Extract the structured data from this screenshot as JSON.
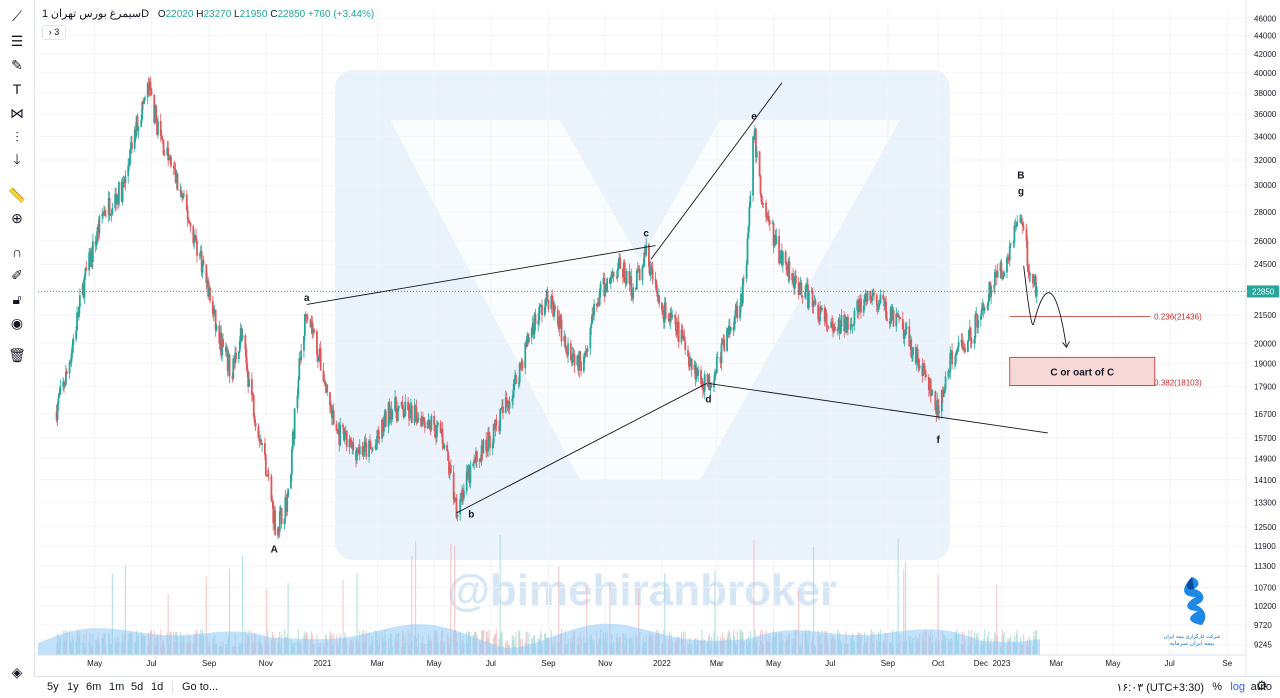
{
  "legend": {
    "symbol": "سیمرغ",
    "interval": "1D",
    "exchange": "بورس تهران",
    "open_label": "O",
    "open": "22020",
    "high_label": "H",
    "high": "23270",
    "low_label": "L",
    "low": "21950",
    "close_label": "C",
    "close": "22850",
    "change": "+760 (+3.44%)",
    "indicators_collapsed": "3"
  },
  "watermark": "@bimehiranbroker",
  "bottom_bar": {
    "ranges": [
      "5y",
      "1y",
      "6m",
      "1m",
      "5d",
      "1d"
    ],
    "goto": "Go to...",
    "clock": "۱۶:۰۳ (UTC+3:30)",
    "percent": "%",
    "log": "log",
    "auto": "auto"
  },
  "logo": {
    "line1": "شرکت کارگزاری بیمه ایران",
    "line2": "بیمه ایران سرمایه"
  },
  "icons": {
    "toolbar": [
      "trend-line-icon",
      "fib-icon",
      "brush-icon",
      "text-icon",
      "pattern-icon",
      "prediction-icon",
      "arrow-down-icon",
      "ruler-icon",
      "zoom-icon",
      "magnet-icon",
      "lock-pencil-icon",
      "lock-icon",
      "eye-icon",
      "trash-icon"
    ],
    "bottom": [
      "layers-icon",
      "gear-icon"
    ]
  },
  "colors": {
    "up": "#26a69a",
    "down": "#e0565b",
    "price_line": "#26a69a",
    "fib_line": "#c62828",
    "watermark": "#4c8fd6"
  },
  "chart_data": {
    "type": "candlestick",
    "log_scale": true,
    "y_ticks": [
      "46000",
      "44000",
      "42000",
      "40000",
      "38000",
      "36000",
      "34000",
      "32000",
      "30000",
      "28000",
      "26000",
      "24500",
      "23000",
      "21500",
      "20000",
      "19000",
      "17900",
      "16700",
      "15700",
      "14900",
      "14100",
      "13300",
      "12500",
      "11900",
      "11300",
      "10700",
      "10200",
      "9720",
      "9245"
    ],
    "x_ticks": [
      "May",
      "Jul",
      "Sep",
      "Nov",
      "2021",
      "Mar",
      "May",
      "Jul",
      "Sep",
      "Nov",
      "2022",
      "Mar",
      "May",
      "Jul",
      "Sep",
      "Oct",
      "Dec",
      "2023",
      "Mar",
      "May",
      "Jul",
      "Se"
    ],
    "ylim": [
      9000,
      47000
    ],
    "last_price": "22850",
    "wave_labels": [
      {
        "text": "A",
        "date": "2020-11-10",
        "price": 11700
      },
      {
        "text": "a",
        "date": "2020-12-15",
        "price": 22300
      },
      {
        "text": "b",
        "date": "2021-06-10",
        "price": 12800
      },
      {
        "text": "c",
        "date": "2021-12-15",
        "price": 26300
      },
      {
        "text": "d",
        "date": "2022-02-20",
        "price": 17200
      },
      {
        "text": "e",
        "date": "2022-04-10",
        "price": 35500
      },
      {
        "text": "f",
        "date": "2022-10-25",
        "price": 15500
      },
      {
        "text": "B",
        "date": "2023-01-22",
        "price": 30500
      },
      {
        "text": "g",
        "date": "2023-01-22",
        "price": 29300
      }
    ],
    "trend_lines": [
      {
        "from": {
          "date": "2020-12-15",
          "price": 22100
        },
        "to": {
          "date": "2021-12-25",
          "price": 25700
        }
      },
      {
        "from": {
          "date": "2021-05-25",
          "price": 12950
        },
        "to": {
          "date": "2022-02-18",
          "price": 18050
        }
      },
      {
        "from": {
          "date": "2021-12-20",
          "price": 24800
        },
        "to": {
          "date": "2022-05-10",
          "price": 39000
        }
      },
      {
        "from": {
          "date": "2022-02-20",
          "price": 18050
        },
        "to": {
          "date": "2023-02-20",
          "price": 15900
        }
      }
    ],
    "fib_levels": [
      {
        "label": "0.236(21436)",
        "price": 21436
      },
      {
        "label": "0.382(18103)",
        "price": 18103
      }
    ],
    "annotation_box": {
      "text": "C or oart of C",
      "price_top": 19300,
      "price_bottom": 17950,
      "date_from": "2023-01-10",
      "date_to": "2023-06-15"
    },
    "projection_path": [
      {
        "date": "2023-01-25",
        "price": 24400
      },
      {
        "date": "2023-02-05",
        "price": 21100
      },
      {
        "date": "2023-02-18",
        "price": 22800
      },
      {
        "date": "2023-03-12",
        "price": 19800
      }
    ],
    "series": [
      {
        "name": "price",
        "anchors": [
          [
            "2020-03-20",
            16800
          ],
          [
            "2020-04-01",
            18500
          ],
          [
            "2020-04-20",
            23500
          ],
          [
            "2020-05-10",
            28000
          ],
          [
            "2020-06-01",
            29800
          ],
          [
            "2020-06-15",
            35000
          ],
          [
            "2020-06-28",
            38500
          ],
          [
            "2020-07-10",
            34000
          ],
          [
            "2020-07-25",
            31000
          ],
          [
            "2020-08-10",
            27500
          ],
          [
            "2020-08-25",
            24500
          ],
          [
            "2020-09-10",
            20500
          ],
          [
            "2020-09-25",
            18500
          ],
          [
            "2020-10-05",
            20500
          ],
          [
            "2020-10-20",
            16800
          ],
          [
            "2020-11-02",
            14500
          ],
          [
            "2020-11-12",
            12400
          ],
          [
            "2020-11-25",
            13500
          ],
          [
            "2020-12-05",
            18000
          ],
          [
            "2020-12-15",
            22000
          ],
          [
            "2020-12-30",
            19000
          ],
          [
            "2021-01-15",
            16000
          ],
          [
            "2021-02-01",
            15300
          ],
          [
            "2021-02-25",
            15200
          ],
          [
            "2021-03-15",
            17000
          ],
          [
            "2021-03-25",
            16800
          ],
          [
            "2021-04-20",
            16600
          ],
          [
            "2021-05-10",
            15800
          ],
          [
            "2021-05-25",
            13200
          ],
          [
            "2021-06-15",
            14800
          ],
          [
            "2021-07-05",
            16000
          ],
          [
            "2021-07-25",
            17800
          ],
          [
            "2021-08-15",
            21000
          ],
          [
            "2021-09-01",
            22500
          ],
          [
            "2021-09-20",
            20000
          ],
          [
            "2021-10-05",
            19000
          ],
          [
            "2021-10-25",
            22500
          ],
          [
            "2021-11-15",
            24500
          ],
          [
            "2021-12-01",
            23000
          ],
          [
            "2021-12-15",
            25200
          ],
          [
            "2021-12-30",
            22000
          ],
          [
            "2022-01-20",
            20500
          ],
          [
            "2022-02-10",
            18300
          ],
          [
            "2022-02-20",
            18000
          ],
          [
            "2022-03-05",
            19500
          ],
          [
            "2022-03-20",
            21500
          ],
          [
            "2022-04-01",
            23500
          ],
          [
            "2022-04-10",
            34500
          ],
          [
            "2022-04-18",
            29000
          ],
          [
            "2022-05-05",
            25500
          ],
          [
            "2022-05-25",
            23500
          ],
          [
            "2022-06-15",
            22000
          ],
          [
            "2022-07-05",
            20500
          ],
          [
            "2022-07-25",
            21500
          ],
          [
            "2022-08-15",
            22500
          ],
          [
            "2022-09-05",
            21500
          ],
          [
            "2022-09-25",
            20000
          ],
          [
            "2022-10-10",
            18500
          ],
          [
            "2022-10-25",
            16700
          ],
          [
            "2022-11-10",
            19500
          ],
          [
            "2022-11-30",
            20500
          ],
          [
            "2022-12-20",
            23000
          ],
          [
            "2023-01-05",
            24500
          ],
          [
            "2023-01-20",
            28000
          ],
          [
            "2023-02-01",
            24000
          ],
          [
            "2023-02-10",
            22850
          ]
        ]
      }
    ]
  }
}
